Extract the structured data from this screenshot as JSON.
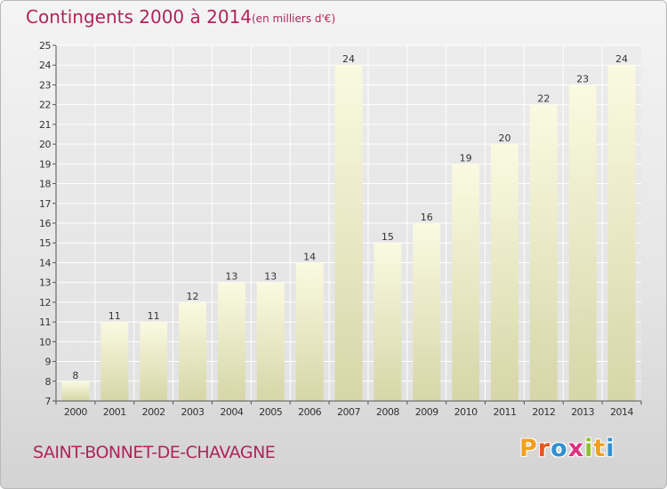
{
  "header": {
    "title": "Contingents 2000 à 2014",
    "unit": "(en milliers d'€)"
  },
  "footer": {
    "commune": "SAINT-BONNET-DE-CHAVAGNE",
    "brand": "Proxiti",
    "brand_colors": [
      "#f0a020",
      "#e05a20",
      "#3090d0",
      "#e03080",
      "#90c030",
      "#f0a020",
      "#3090d0"
    ]
  },
  "chart_data": {
    "type": "bar",
    "title": "Contingents 2000 à 2014",
    "subtitle": "(en milliers d'€)",
    "xlabel": "",
    "ylabel": "",
    "categories": [
      "2000",
      "2001",
      "2002",
      "2003",
      "2004",
      "2005",
      "2006",
      "2007",
      "2008",
      "2009",
      "2010",
      "2011",
      "2012",
      "2013",
      "2014"
    ],
    "values": [
      8,
      11,
      11,
      12,
      13,
      13,
      14,
      24,
      15,
      16,
      19,
      20,
      22,
      23,
      24
    ],
    "data_labels": [
      "8",
      "11",
      "11",
      "12",
      "13",
      "13",
      "14",
      "24",
      "15",
      "16",
      "19",
      "20",
      "22",
      "23",
      "24"
    ],
    "ylim": [
      7,
      25
    ],
    "yticks": [
      7,
      8,
      9,
      10,
      11,
      12,
      13,
      14,
      15,
      16,
      17,
      18,
      19,
      20,
      21,
      22,
      23,
      24,
      25
    ],
    "grid": true,
    "colors": {
      "bar_top": "#fafae2",
      "bar_bottom": "#d6d6a8",
      "grid": "#ffffff",
      "axis": "#555555",
      "text": "#333333",
      "accent": "#b0245a"
    }
  }
}
